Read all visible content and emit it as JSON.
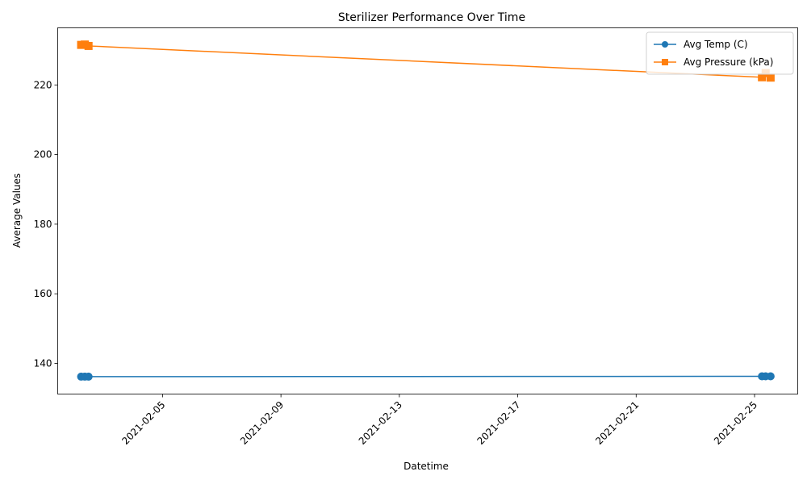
{
  "chart_data": {
    "type": "line",
    "title": "Sterilizer Performance Over Time",
    "xlabel": "Datetime",
    "ylabel": "Average Values",
    "x_ticks": [
      "2021-02-05",
      "2021-02-09",
      "2021-02-13",
      "2021-02-17",
      "2021-02-21",
      "2021-02-25"
    ],
    "y_ticks": [
      140,
      160,
      180,
      200,
      220
    ],
    "xlim": [
      "2021-02-01 11:00",
      "2021-02-26 11:00"
    ],
    "ylim": [
      131.2,
      236.4
    ],
    "legend_position": "top-right",
    "grid": false,
    "series": [
      {
        "name": "Avg Temp (C)",
        "color": "#1f77b4",
        "marker": "circle",
        "points": [
          {
            "x": "2021-02-02 06:00",
            "y": 136.2
          },
          {
            "x": "2021-02-02 09:00",
            "y": 136.2
          },
          {
            "x": "2021-02-02 12:00",
            "y": 136.2
          },
          {
            "x": "2021-02-25 06:00",
            "y": 136.3
          },
          {
            "x": "2021-02-25 09:00",
            "y": 136.3
          },
          {
            "x": "2021-02-25 13:00",
            "y": 136.3
          }
        ]
      },
      {
        "name": "Avg Pressure (kPa)",
        "color": "#ff7f0e",
        "marker": "square",
        "points": [
          {
            "x": "2021-02-02 06:00",
            "y": 231.5
          },
          {
            "x": "2021-02-02 09:00",
            "y": 231.6
          },
          {
            "x": "2021-02-02 12:00",
            "y": 231.2
          },
          {
            "x": "2021-02-25 06:00",
            "y": 222.2
          },
          {
            "x": "2021-02-25 09:00",
            "y": 223.4
          },
          {
            "x": "2021-02-25 13:00",
            "y": 222.1
          }
        ]
      }
    ]
  }
}
